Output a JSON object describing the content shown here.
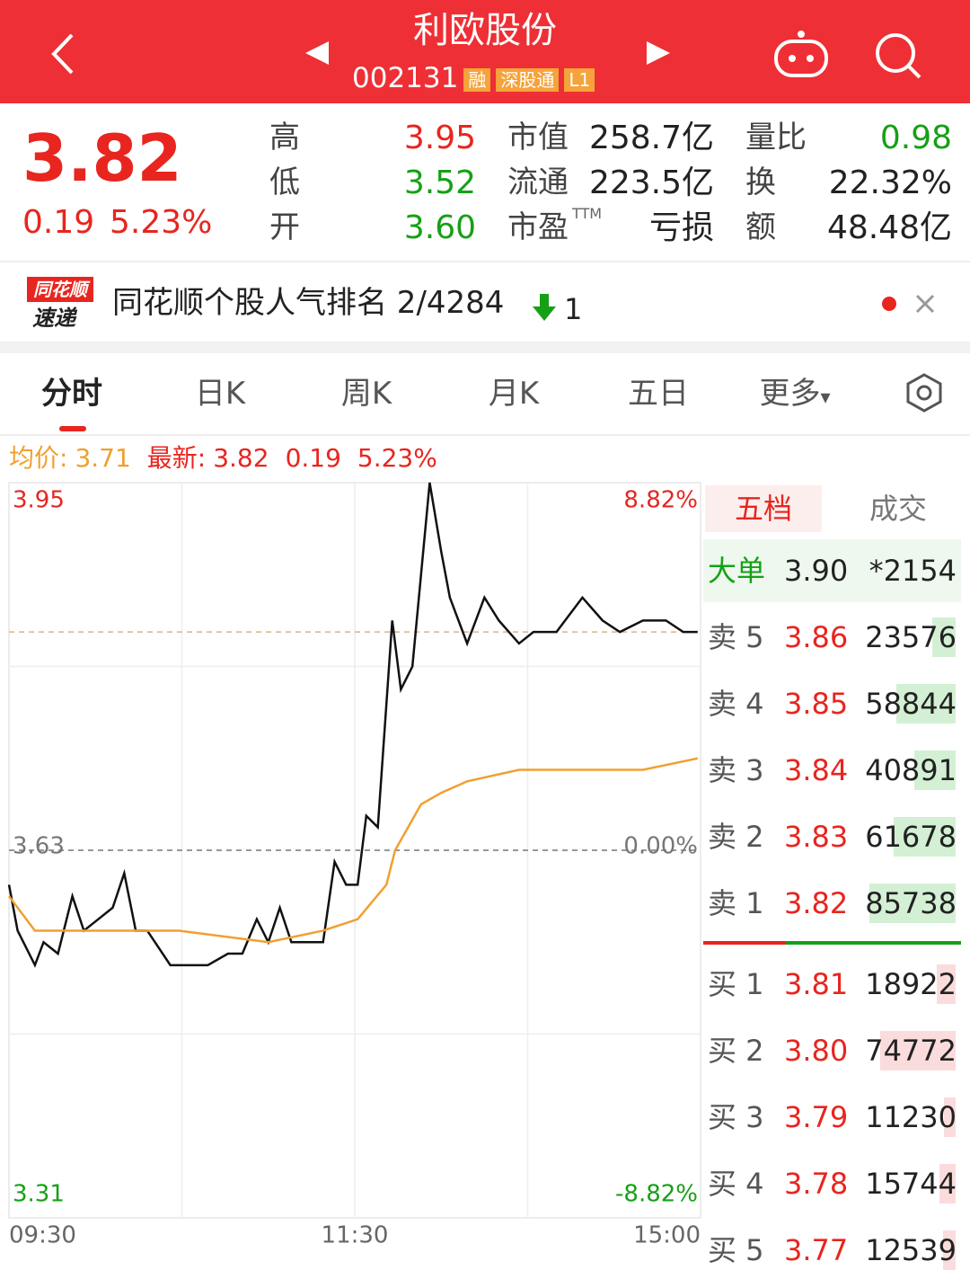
{
  "header": {
    "title": "利欧股份",
    "code": "002131",
    "tags": [
      "融",
      "深股通",
      "L1"
    ]
  },
  "quote": {
    "price": "3.82",
    "change": "0.19",
    "change_pct": "5.23%",
    "stats": [
      {
        "label": "高",
        "value": "3.95",
        "tone": "up"
      },
      {
        "label": "低",
        "value": "3.52",
        "tone": "down"
      },
      {
        "label": "开",
        "value": "3.60",
        "tone": "down"
      },
      {
        "label": "市值",
        "value": "258.7亿",
        "tone": "flat"
      },
      {
        "label": "流通",
        "value": "223.5亿",
        "tone": "flat"
      },
      {
        "label": "市盈",
        "sup": "TTM",
        "value": "亏损",
        "tone": "flat"
      },
      {
        "label": "量比",
        "value": "0.98",
        "tone": "down"
      },
      {
        "label": "换",
        "value": "22.32%",
        "tone": "flat"
      },
      {
        "label": "额",
        "value": "48.48亿",
        "tone": "flat"
      }
    ]
  },
  "banner": {
    "logo_top": "同花顺",
    "logo_bottom": "速递",
    "text": "同花顺个股人气排名 2/4284",
    "rank_change": "1"
  },
  "tabs": [
    "分时",
    "日K",
    "周K",
    "月K",
    "五日",
    "更多"
  ],
  "info": {
    "avg_label": "均价:",
    "avg": "3.71",
    "latest_label": "最新:",
    "latest": "3.82",
    "change": "0.19",
    "change_pct": "5.23%"
  },
  "intraday": {
    "type": "line",
    "xlim": [
      0,
      240
    ],
    "xticks": [
      {
        "value": 0,
        "label": "09:30"
      },
      {
        "value": 120,
        "label": "11:30"
      },
      {
        "value": 240,
        "label": "15:00"
      }
    ],
    "ylim": [
      3.31,
      3.95
    ],
    "yticks": [
      3.31,
      3.63,
      3.95
    ],
    "y2lim": [
      -8.82,
      8.82
    ],
    "y2ticks": [
      {
        "value": -8.82,
        "label": "-8.82%"
      },
      {
        "value": 0,
        "label": "0.00%"
      },
      {
        "value": 8.82,
        "label": "8.82%"
      }
    ],
    "series": [
      {
        "color": "#111111",
        "x": [
          0,
          3,
          9,
          12,
          17,
          22,
          26,
          31,
          36,
          40,
          44,
          48,
          56,
          62,
          69,
          76,
          81,
          86,
          90,
          94,
          98,
          104,
          109,
          113,
          117,
          121,
          124,
          128,
          133,
          136,
          140,
          143,
          146,
          150,
          153,
          156,
          159,
          165,
          170,
          177,
          182,
          190,
          199,
          206,
          212,
          220,
          228,
          234,
          239
        ],
        "values": [
          3.6,
          3.56,
          3.53,
          3.55,
          3.54,
          3.59,
          3.56,
          3.57,
          3.58,
          3.61,
          3.56,
          3.56,
          3.53,
          3.53,
          3.53,
          3.54,
          3.54,
          3.57,
          3.55,
          3.58,
          3.55,
          3.55,
          3.55,
          3.62,
          3.6,
          3.6,
          3.66,
          3.65,
          3.83,
          3.77,
          3.79,
          3.87,
          3.95,
          3.89,
          3.85,
          3.83,
          3.81,
          3.85,
          3.83,
          3.81,
          3.82,
          3.82,
          3.85,
          3.83,
          3.82,
          3.83,
          3.83,
          3.82,
          3.82
        ]
      },
      {
        "color": "#f0a030",
        "x": [
          0,
          9,
          28,
          44,
          59,
          90,
          109,
          121,
          131,
          134,
          143,
          150,
          159,
          177,
          199,
          220,
          239
        ],
        "values": [
          3.59,
          3.56,
          3.56,
          3.56,
          3.56,
          3.55,
          3.56,
          3.57,
          3.6,
          3.63,
          3.67,
          3.68,
          3.69,
          3.7,
          3.7,
          3.7,
          3.71
        ]
      }
    ]
  },
  "order_book": {
    "tabs": [
      "五档",
      "成交"
    ],
    "big_order": {
      "label": "大单",
      "price": "3.90",
      "volume": "*2154"
    },
    "rows": [
      {
        "label": "卖 5",
        "price": "3.86",
        "volume": 23576,
        "side": "sell"
      },
      {
        "label": "卖 4",
        "price": "3.85",
        "volume": 58844,
        "side": "sell"
      },
      {
        "label": "卖 3",
        "price": "3.84",
        "volume": 40891,
        "side": "sell"
      },
      {
        "label": "卖 2",
        "price": "3.83",
        "volume": 61678,
        "side": "sell"
      },
      {
        "label": "卖 1",
        "price": "3.82",
        "volume": 85738,
        "side": "sell"
      },
      {
        "label": "买 1",
        "price": "3.81",
        "volume": 18922,
        "side": "buy"
      },
      {
        "label": "买 2",
        "price": "3.80",
        "volume": 74772,
        "side": "buy"
      },
      {
        "label": "买 3",
        "price": "3.79",
        "volume": 11230,
        "side": "buy"
      },
      {
        "label": "买 4",
        "price": "3.78",
        "volume": 15744,
        "side": "buy"
      },
      {
        "label": "买 5",
        "price": "3.77",
        "volume": 12539,
        "side": "buy"
      }
    ]
  }
}
